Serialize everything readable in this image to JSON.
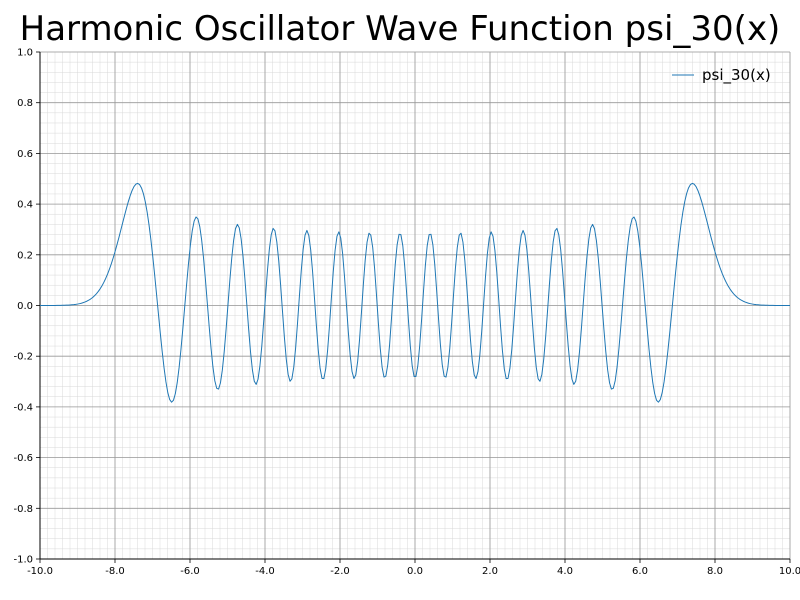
{
  "chart_data": {
    "type": "line",
    "title": "Harmonic Oscillator Wave Function psi_30(x)",
    "xlabel": "",
    "ylabel": "",
    "xlim": [
      -10.0,
      10.0
    ],
    "ylim": [
      -1.0,
      1.0
    ],
    "x_ticks": [
      "-10.0",
      "-8.0",
      "-6.0",
      "-4.0",
      "-2.0",
      "0.0",
      "2.0",
      "4.0",
      "6.0",
      "8.0",
      "10.0"
    ],
    "y_ticks": [
      "-1.0",
      "-0.8",
      "-0.6",
      "-0.4",
      "-0.2",
      "0.0",
      "0.2",
      "0.4",
      "0.6",
      "0.8",
      "1.0"
    ],
    "grid": true,
    "minor_grid": true,
    "legend_position": "top-right",
    "series": [
      {
        "name": "psi_30(x)",
        "color": "#1f77b4",
        "function": "normalized Hermite-Gauss eigenfunction, n = 30",
        "n": 30,
        "x_start": -10.0,
        "x_end": 10.0,
        "samples": 400
      }
    ]
  }
}
